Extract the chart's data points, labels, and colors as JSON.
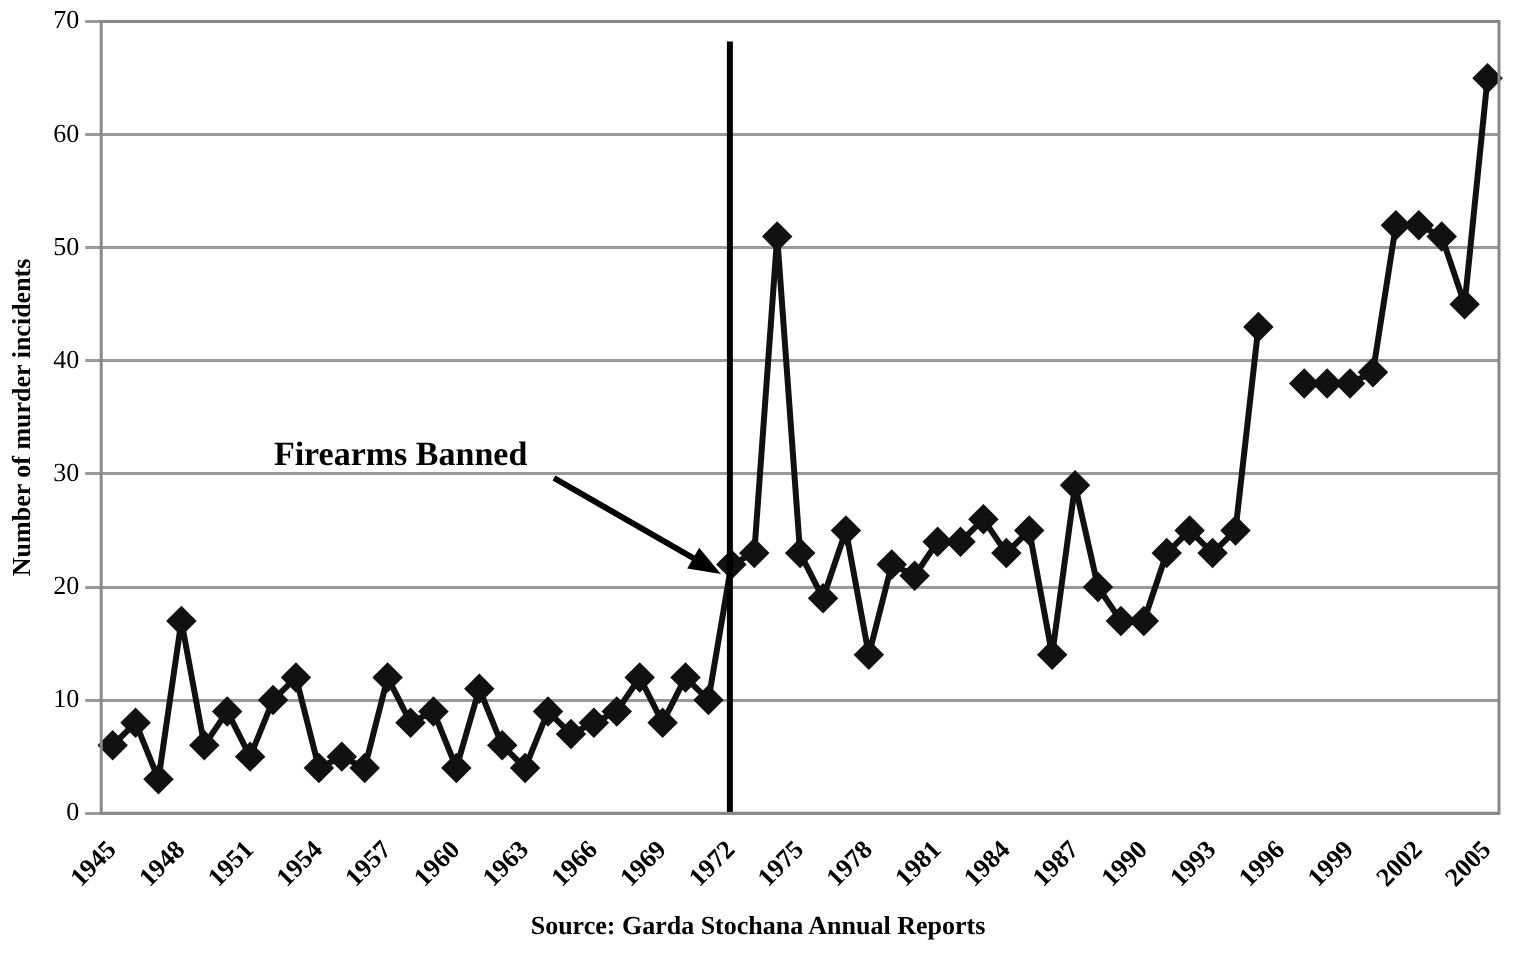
{
  "chart_data": {
    "type": "line",
    "ylabel": "Number of murder incidents",
    "categories": [
      "1945",
      null,
      null,
      "1948",
      null,
      null,
      "1951",
      null,
      null,
      "1954",
      null,
      null,
      "1957",
      null,
      null,
      "1960",
      null,
      null,
      "1963",
      null,
      null,
      "1966",
      null,
      null,
      "1969",
      null,
      null,
      "1972",
      null,
      null,
      "1975",
      null,
      null,
      "1978",
      null,
      null,
      "1981",
      null,
      null,
      "1984",
      null,
      null,
      "1987",
      null,
      null,
      "1990",
      null,
      null,
      "1993",
      null,
      null,
      "1996",
      null,
      null,
      "1999",
      null,
      null,
      "2002",
      null,
      null,
      "2005"
    ],
    "series": [
      {
        "color": "#111111",
        "values": [
          6,
          8,
          3,
          17,
          6,
          9,
          5,
          10,
          12,
          4,
          5,
          4,
          12,
          8,
          9,
          4,
          11,
          6,
          4,
          9,
          7,
          8,
          9,
          12,
          8,
          12,
          10,
          22,
          23,
          51,
          23,
          19,
          25,
          14,
          22,
          21,
          24,
          24,
          26,
          23,
          25,
          14,
          29,
          20,
          17,
          17,
          23,
          25,
          23,
          25,
          43,
          null,
          38,
          38,
          38,
          39,
          52,
          52,
          51,
          45,
          65
        ]
      }
    ],
    "ylim": [
      0,
      70
    ],
    "yticks": [
      0,
      10,
      20,
      30,
      40,
      50,
      60,
      70
    ],
    "grid": "y",
    "legend": false,
    "marker": "diamond",
    "line_style": "solid",
    "ref_lines": [
      {
        "axis": "x",
        "value": "1972",
        "label": "Firearms Banned",
        "color": "#000000"
      }
    ],
    "annotations": [
      "Source: Garda Stochana Annual Reports"
    ]
  }
}
